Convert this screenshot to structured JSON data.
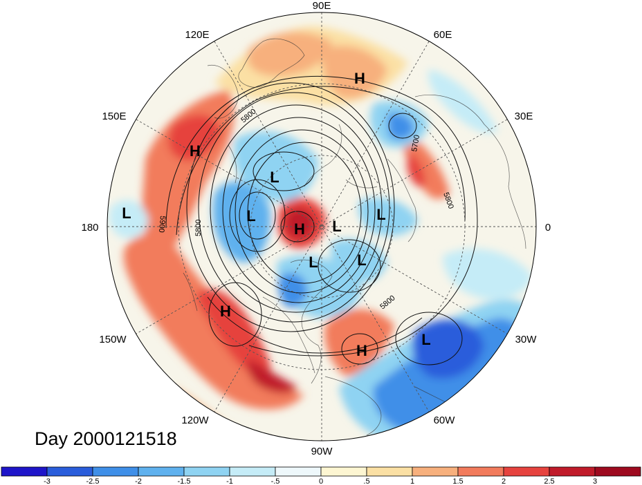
{
  "title": "Day 2000121518",
  "longitude_labels": [
    "90E",
    "60E",
    "120E",
    "30E",
    "150E",
    "180",
    "0",
    "150W",
    "30W",
    "120W",
    "60W",
    "90W"
  ],
  "contour_labels": [
    "5800",
    "5900",
    "5800",
    "5700",
    "5800",
    "5800"
  ],
  "pressure_centers": [
    {
      "kind": "H",
      "where": "northern Siberia"
    },
    {
      "kind": "H",
      "where": "western North Pacific"
    },
    {
      "kind": "L",
      "where": "Sea of Okhotsk / NE Asia"
    },
    {
      "kind": "L",
      "where": "central Pacific"
    },
    {
      "kind": "L",
      "where": "Bering / East Siberian Sea"
    },
    {
      "kind": "H",
      "where": "Arctic Ocean"
    },
    {
      "kind": "L",
      "where": "Arctic near Greenland"
    },
    {
      "kind": "L",
      "where": "Barents / Kara Sea"
    },
    {
      "kind": "L",
      "where": "Canadian Arctic"
    },
    {
      "kind": "L",
      "where": "Hudson Bay"
    },
    {
      "kind": "H",
      "where": "Gulf of Alaska"
    },
    {
      "kind": "H",
      "where": "southeastern United States"
    },
    {
      "kind": "L",
      "where": "central North Atlantic"
    }
  ],
  "colorbar": {
    "ticks": [
      "-3",
      "-2.5",
      "-2",
      "-1.5",
      "-1",
      "-.5",
      "0",
      ".5",
      "1",
      "1.5",
      "2",
      "2.5",
      "3"
    ],
    "colors": [
      "#1e15c9",
      "#2a5ddb",
      "#3f8fe8",
      "#5fb1ee",
      "#8fd3f2",
      "#c5ecf7",
      "#eef8fb",
      "#fdf6d2",
      "#fbe0a4",
      "#f7b07d",
      "#f27b5c",
      "#e6433e",
      "#c01b2a",
      "#9e0a1f"
    ]
  },
  "colors": {
    "strong_negative": "#2a5ddb",
    "weak_negative": "#bfe6f5",
    "neutral": "#f7f5ea",
    "weak_positive": "#fbe0a4",
    "strong_positive": "#e6433e"
  }
}
